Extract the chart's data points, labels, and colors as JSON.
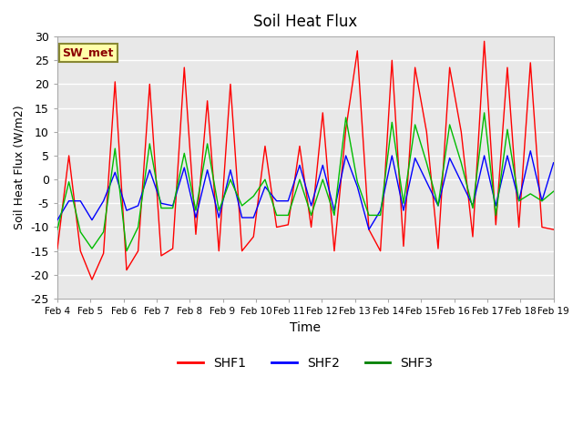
{
  "title": "Soil Heat Flux",
  "xlabel": "Time",
  "ylabel": "Soil Heat Flux (W/m2)",
  "ylim": [
    -25,
    30
  ],
  "annotation": "SW_met",
  "fig_bg_color": "#ffffff",
  "plot_bg_color": "#e8e8e8",
  "legend": [
    {
      "label": "SHF1",
      "color": "red"
    },
    {
      "label": "SHF2",
      "color": "blue"
    },
    {
      "label": "SHF3",
      "color": "green"
    }
  ],
  "shf1": [
    -14.5,
    5.0,
    -15.0,
    -21.0,
    -15.5,
    20.5,
    -19.0,
    -15.0,
    20.0,
    -16.0,
    -14.5,
    23.5,
    -11.5,
    16.5,
    -15.0,
    20.0,
    -15.0,
    -12.0,
    7.0,
    -10.0,
    -9.5,
    7.0,
    -10.0,
    14.0,
    -15.0,
    10.5,
    27.0,
    -10.5,
    -15.0,
    25.0,
    -14.0,
    23.5,
    10.0,
    -14.5,
    23.5,
    10.0,
    -12.0,
    29.0,
    -9.5,
    23.5,
    -10.0,
    24.5,
    -10.0,
    -10.5
  ],
  "shf2": [
    -8.5,
    -4.5,
    -4.5,
    -8.5,
    -4.5,
    1.5,
    -6.5,
    -5.5,
    2.0,
    -5.0,
    -5.5,
    2.5,
    -8.0,
    2.0,
    -8.0,
    2.0,
    -8.0,
    -8.0,
    -1.5,
    -4.5,
    -4.5,
    3.0,
    -5.5,
    3.0,
    -6.5,
    5.0,
    -1.5,
    -10.5,
    -6.5,
    5.0,
    -6.5,
    4.5,
    -0.5,
    -5.5,
    4.5,
    -0.5,
    -5.5,
    5.0,
    -5.5,
    5.0,
    -4.5,
    6.0,
    -4.5,
    3.5
  ],
  "shf3": [
    -10.5,
    -0.5,
    -11.0,
    -14.5,
    -11.0,
    6.5,
    -15.0,
    -10.0,
    7.5,
    -6.0,
    -6.0,
    5.5,
    -6.5,
    7.5,
    -6.5,
    0.0,
    -5.5,
    -3.5,
    0.0,
    -7.5,
    -7.5,
    0.0,
    -7.5,
    0.0,
    -7.5,
    13.0,
    -0.5,
    -7.5,
    -7.5,
    12.0,
    -5.0,
    11.5,
    3.5,
    -5.5,
    11.5,
    3.5,
    -6.0,
    14.0,
    -7.5,
    10.5,
    -4.5,
    -3.0,
    -4.5,
    -2.5
  ],
  "xtick_labels": [
    "Feb 4",
    "Feb 5",
    "Feb 6",
    "Feb 7",
    "Feb 8",
    "Feb 9",
    "Feb 10",
    "Feb 11",
    "Feb 12",
    "Feb 13",
    "Feb 14",
    "Feb 15",
    "Feb 16",
    "Feb 17",
    "Feb 18",
    "Feb 19"
  ],
  "ytick_values": [
    -25,
    -20,
    -15,
    -10,
    -5,
    0,
    5,
    10,
    15,
    20,
    25,
    30
  ],
  "grid_color": "#ffffff",
  "shf1_color": "#ff0000",
  "shf2_color": "#0000ff",
  "shf3_color": "#00bb00"
}
